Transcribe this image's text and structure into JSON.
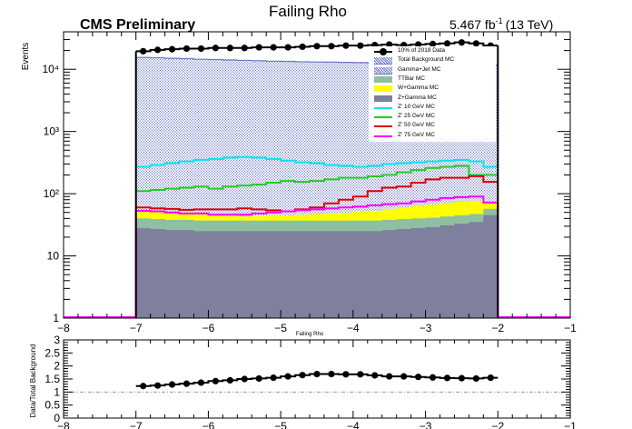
{
  "header": {
    "experiment": "CMS Preliminary",
    "lumi": "5.467 fb",
    "lumi_exp": "-1",
    "energy": "(13 TeV)"
  },
  "colors": {
    "total_bkg_hatch": "#6a75c9",
    "gamma_jet_fill": "#ffffff",
    "ttbar": "#8fbfa2",
    "w_gamma": "#ffff00",
    "z_gamma": "#7f7f9e",
    "zp10": "#00e5ee",
    "zp25": "#22cc22",
    "zp50": "#dd0000",
    "zp75": "#ff00ff",
    "data": "#000000",
    "ratio_ref": "#999999"
  },
  "chart_data": [
    {
      "type": "bar",
      "title": "Failing Rho",
      "xlabel": "Failing Rho",
      "ylabel": "Events",
      "xlim": [
        -8,
        -1
      ],
      "ylim": [
        1,
        40000
      ],
      "log_y": true,
      "x_ticks": [
        "−8",
        "−7",
        "−6",
        "−5",
        "−4",
        "−3",
        "−2",
        "−1"
      ],
      "y_ticks": [
        "1",
        "10",
        "10²",
        "10³",
        "10⁴"
      ],
      "bin_edges": [
        -7.0,
        -6.8,
        -6.6,
        -6.4,
        -6.2,
        -6.0,
        -5.8,
        -5.6,
        -5.4,
        -5.2,
        -5.0,
        -4.8,
        -4.6,
        -4.4,
        -4.2,
        -4.0,
        -3.8,
        -3.6,
        -3.4,
        -3.2,
        -3.0,
        -2.8,
        -2.6,
        -2.4,
        -2.2,
        -2.0
      ],
      "legend": [
        {
          "name": "10% of 2018 Data",
          "style": "marker"
        },
        {
          "name": "Total Background MC",
          "style": "hatch"
        },
        {
          "name": "Gamma+Jet MC",
          "style": "hatch"
        },
        {
          "name": "TTBar MC",
          "style": "fill"
        },
        {
          "name": "W+Gamma MC",
          "style": "fill"
        },
        {
          "name": "Z+Gamma MC",
          "style": "fill"
        },
        {
          "name": "Z' 10 GeV MC",
          "style": "line"
        },
        {
          "name": "Z' 25 GeV MC",
          "style": "line"
        },
        {
          "name": "Z' 50 GeV MC",
          "style": "line"
        },
        {
          "name": "Z' 75 GeV MC",
          "style": "line"
        }
      ],
      "series": [
        {
          "key": "total_bkg",
          "values": [
            15500,
            15300,
            15000,
            14800,
            14500,
            14300,
            14100,
            13900,
            13700,
            13500,
            13400,
            13200,
            13100,
            13000,
            12900,
            12800,
            12600,
            12500,
            12400,
            12300,
            12100,
            12000,
            11900,
            11800,
            11700
          ]
        },
        {
          "key": "z_gamma",
          "values": [
            28,
            27,
            26,
            26,
            25,
            25,
            25,
            25,
            25,
            25,
            25,
            25,
            25,
            25,
            25,
            25,
            25,
            26,
            27,
            28,
            29,
            31,
            33,
            35,
            45
          ]
        },
        {
          "key": "ttbar",
          "values": [
            12,
            12,
            12,
            12,
            12,
            12,
            12,
            12,
            12,
            12,
            12,
            12,
            12,
            12,
            12,
            12,
            12,
            12,
            12,
            12,
            12,
            12,
            12,
            12,
            12
          ]
        },
        {
          "key": "w_gamma",
          "values": [
            14,
            14,
            13,
            12,
            10,
            8,
            7,
            6,
            7,
            8,
            8,
            9,
            10,
            11,
            12,
            14,
            16,
            18,
            20,
            24,
            26,
            28,
            30,
            30,
            16
          ]
        },
        {
          "key": "zp10",
          "values": [
            270,
            290,
            310,
            330,
            350,
            360,
            380,
            390,
            380,
            360,
            340,
            320,
            310,
            290,
            280,
            270,
            280,
            300,
            310,
            320,
            330,
            340,
            350,
            330,
            270
          ]
        },
        {
          "key": "zp25",
          "values": [
            110,
            115,
            120,
            125,
            130,
            120,
            130,
            135,
            140,
            150,
            160,
            155,
            160,
            170,
            180,
            180,
            190,
            200,
            220,
            240,
            260,
            270,
            280,
            200,
            200
          ]
        },
        {
          "key": "zp50",
          "values": [
            60,
            58,
            57,
            55,
            56,
            56,
            56,
            58,
            56,
            54,
            52,
            56,
            60,
            70,
            80,
            90,
            110,
            125,
            130,
            150,
            170,
            180,
            180,
            190,
            155
          ]
        },
        {
          "key": "zp75",
          "values": [
            53,
            52,
            50,
            48,
            48,
            46,
            46,
            46,
            48,
            50,
            52,
            54,
            56,
            58,
            60,
            62,
            65,
            68,
            70,
            75,
            80,
            85,
            88,
            90,
            72
          ]
        },
        {
          "key": "data",
          "values": [
            19500,
            20500,
            21000,
            21500,
            21500,
            22000,
            22000,
            22000,
            22500,
            22500,
            22500,
            23000,
            23500,
            23500,
            24000,
            24000,
            24500,
            25000,
            24500,
            25000,
            25500,
            26000,
            27000,
            26000,
            24000
          ]
        }
      ]
    },
    {
      "type": "line",
      "title": "",
      "xlabel": "",
      "ylabel": "Data/Total Background",
      "xlim": [
        -8,
        -1
      ],
      "ylim": [
        0,
        3
      ],
      "x_ticks": [
        "−8",
        "−7",
        "−6",
        "−5",
        "−4",
        "−3",
        "−2",
        "−1"
      ],
      "y_ticks": [
        "0",
        "0.5",
        "1",
        "1.5",
        "2",
        "2.5",
        "3"
      ],
      "series": [
        {
          "key": "ratio",
          "x": [
            -6.9,
            -6.7,
            -6.5,
            -6.3,
            -6.1,
            -5.9,
            -5.7,
            -5.5,
            -5.3,
            -5.1,
            -4.9,
            -4.7,
            -4.5,
            -4.3,
            -4.1,
            -3.9,
            -3.7,
            -3.5,
            -3.3,
            -3.1,
            -2.9,
            -2.7,
            -2.5,
            -2.3,
            -2.1
          ],
          "values": [
            1.23,
            1.25,
            1.29,
            1.32,
            1.36,
            1.42,
            1.45,
            1.5,
            1.52,
            1.55,
            1.6,
            1.65,
            1.69,
            1.69,
            1.68,
            1.68,
            1.64,
            1.6,
            1.6,
            1.58,
            1.56,
            1.54,
            1.53,
            1.52,
            1.55
          ]
        }
      ]
    }
  ]
}
